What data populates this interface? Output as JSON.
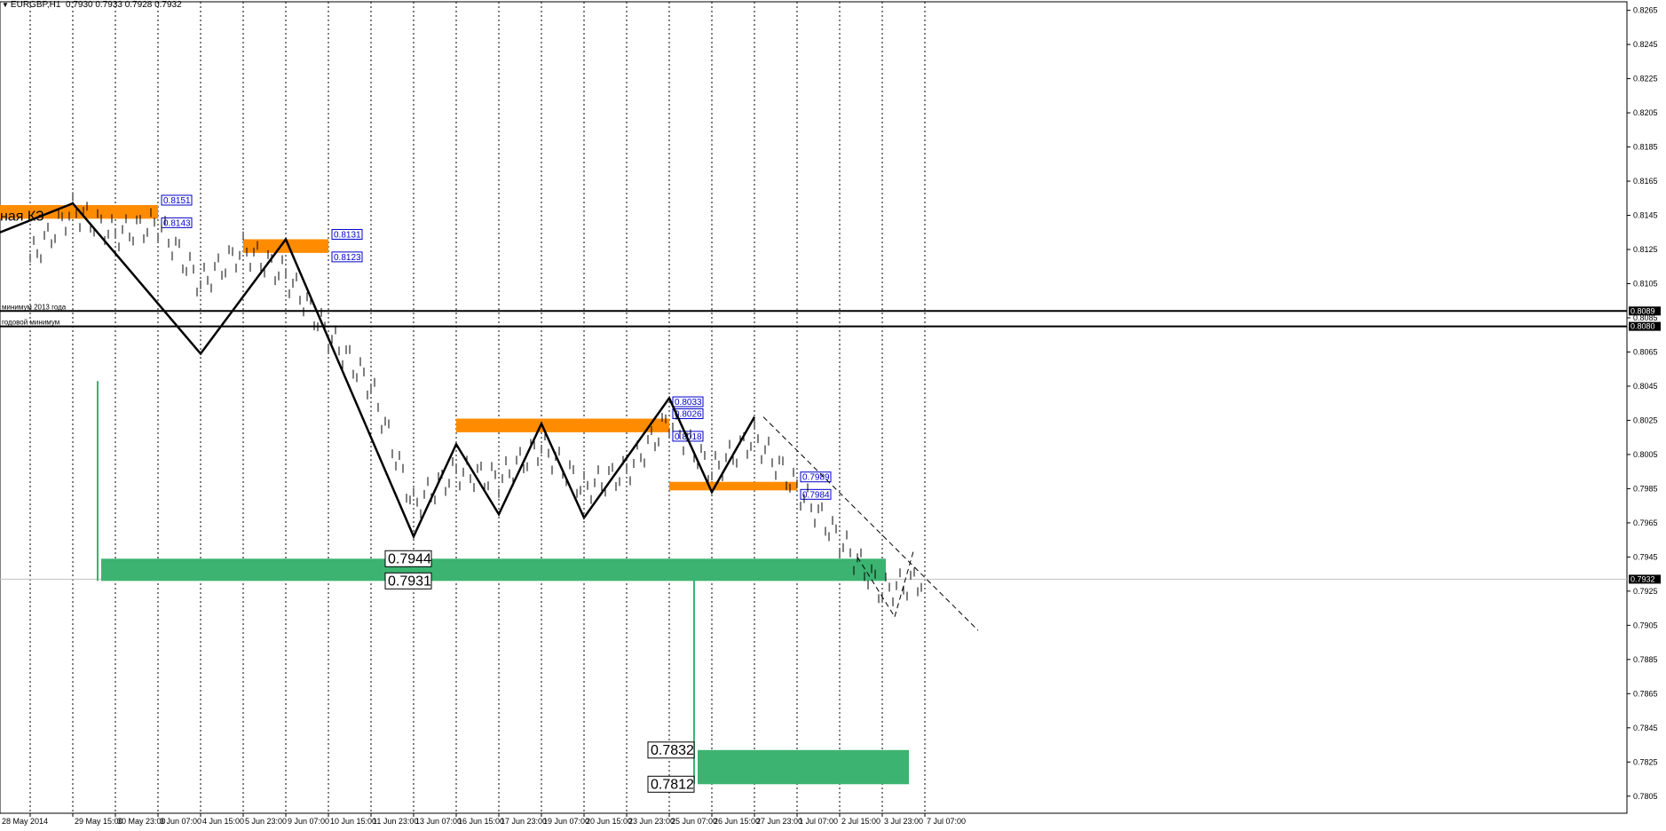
{
  "header": {
    "symbol": "EURGBP,H1",
    "ohlc": "0.7930 0.7933 0.7928 0.7932"
  },
  "chart_data": {
    "type": "candlestick",
    "symbol": "EURGBP",
    "timeframe": "H1",
    "ylim": [
      0.7795,
      0.827
    ],
    "y_ticks": [
      "0.8265",
      "0.8245",
      "0.8225",
      "0.8205",
      "0.8185",
      "0.8165",
      "0.8145",
      "0.8125",
      "0.8105",
      "0.8085",
      "0.8065",
      "0.8045",
      "0.8025",
      "0.8005",
      "0.7985",
      "0.7965",
      "0.7945",
      "0.7925",
      "0.7905",
      "0.7885",
      "0.7865",
      "0.7845",
      "0.7825",
      "0.7805"
    ],
    "x_ticks": [
      "28 May 2014",
      "29 May 15:00",
      "30 May 23:00",
      "3 Jun 07:00",
      "4 Jun 15:00",
      "5 Jun 23:00",
      "9 Jun 07:00",
      "10 Jun 15:00",
      "11 Jun 23:00",
      "13 Jun 07:00",
      "16 Jun 15:00",
      "17 Jun 23:00",
      "19 Jun 07:00",
      "20 Jun 15:00",
      "23 Jun 23:00",
      "25 Jun 07:00",
      "26 Jun 15:00",
      "27 Jun 23:00",
      "1 Jul 07:00",
      "2 Jul 15:00",
      "3 Jul 23:00",
      "7 Jul 07:00"
    ],
    "current_price": "0.7932",
    "grid": "vertical dotted",
    "colors": {
      "price": "#000000",
      "zone_orange": "#ff8c00",
      "zone_green": "#3cb371",
      "label_blue": "#0000cc",
      "current_line": "#c0c0c0"
    },
    "price_path": [
      {
        "t": "28 May 2014",
        "v": 0.812
      },
      {
        "t": "29 May 15:00",
        "v": 0.8148
      },
      {
        "t": "30 May 23:00",
        "v": 0.8134
      },
      {
        "t": "3 Jun 07:00",
        "v": 0.814
      },
      {
        "t": "4 Jun 15:00",
        "v": 0.8105
      },
      {
        "t": "5 Jun 23:00",
        "v": 0.8125
      },
      {
        "t": "9 Jun 07:00",
        "v": 0.811
      },
      {
        "t": "10 Jun 15:00",
        "v": 0.8075
      },
      {
        "t": "11 Jun 23:00",
        "v": 0.8045
      },
      {
        "t": "13 Jun 07:00",
        "v": 0.7975
      },
      {
        "t": "16 Jun 15:00",
        "v": 0.7995
      },
      {
        "t": "17 Jun 23:00",
        "v": 0.799
      },
      {
        "t": "19 Jun 07:00",
        "v": 0.801
      },
      {
        "t": "20 Jun 15:00",
        "v": 0.7985
      },
      {
        "t": "23 Jun 23:00",
        "v": 0.7995
      },
      {
        "t": "25 Jun 07:00",
        "v": 0.8025
      },
      {
        "t": "26 Jun 15:00",
        "v": 0.7995
      },
      {
        "t": "27 Jun 23:00",
        "v": 0.8015
      },
      {
        "t": "1 Jul 07:00",
        "v": 0.7985
      },
      {
        "t": "2 Jul 15:00",
        "v": 0.7955
      },
      {
        "t": "3 Jul 23:00",
        "v": 0.7925
      },
      {
        "t": "7 Jul 07:00",
        "v": 0.7932
      }
    ],
    "zigzag": [
      {
        "t": "28 May 2014",
        "v": 0.8135
      },
      {
        "t": "29 May 15:00",
        "v": 0.8152
      },
      {
        "t": "4 Jun 15:00",
        "v": 0.8064
      },
      {
        "t": "9 Jun 07:00",
        "v": 0.8131
      },
      {
        "t": "13 Jun 07:00",
        "v": 0.7957
      },
      {
        "t": "16 Jun 15:00",
        "v": 0.8011
      },
      {
        "t": "17 Jun 23:00",
        "v": 0.797
      },
      {
        "t": "19 Jun 07:00",
        "v": 0.8023
      },
      {
        "t": "20 Jun 15:00",
        "v": 0.7968
      },
      {
        "t": "25 Jun 07:00",
        "v": 0.8038
      },
      {
        "t": "26 Jun 15:00",
        "v": 0.7983
      },
      {
        "t": "27 Jun 23:00",
        "v": 0.8027
      }
    ],
    "horizontal_lines": [
      {
        "label": "минимум 2013 года",
        "price": "0.8089"
      },
      {
        "label": "годовой минимум",
        "price": "0.8080"
      }
    ],
    "orange_zones": [
      {
        "from": "28 May 2014",
        "to": "3 Jun 07:00",
        "top": "0.8151",
        "bottom": "0.8143"
      },
      {
        "from": "5 Jun 23:00",
        "to": "10 Jun 15:00",
        "top": "0.8131",
        "bottom": "0.8123"
      },
      {
        "from": "16 Jun 15:00",
        "to": "25 Jun 07:00",
        "top": "0.8026",
        "bottom": "0.8018"
      },
      {
        "from": "25 Jun 07:00",
        "to": "25 Jun 07:00",
        "top": "0.8033",
        "bottom": ""
      },
      {
        "from": "25 Jun 07:00",
        "to": "1 Jul 07:00",
        "top": "0.7989",
        "bottom": "0.7984"
      }
    ],
    "green_zones": [
      {
        "from": "29 May 15:00",
        "to": "3 Jul 23:00",
        "top": "0.7944",
        "bottom": "0.7931"
      },
      {
        "from": "25 Jun 07:00",
        "to": "7 Jul 07:00",
        "top": "0.7832",
        "bottom": "0.7812"
      }
    ],
    "annotations": [
      "ная КЗ"
    ]
  }
}
